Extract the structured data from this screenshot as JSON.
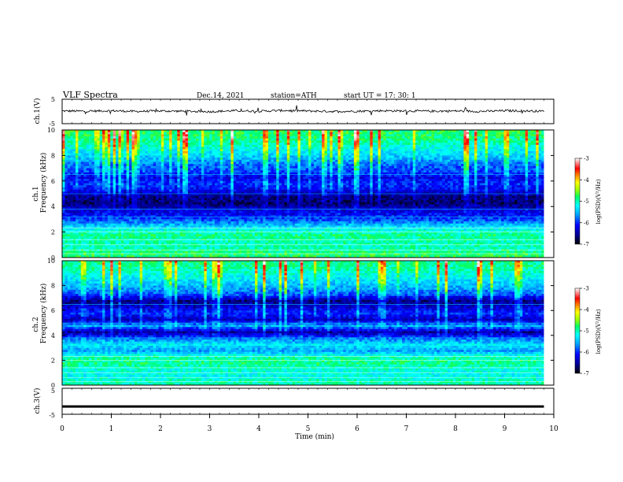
{
  "header": {
    "title": "VLF  Spectra",
    "date": "Dec.14, 2021",
    "station": "station=ATH",
    "start": "start  UT  =    17: 30: 1"
  },
  "chart_data": [
    {
      "type": "line",
      "panel": "ch1-waveform",
      "ylabel": "ch.1(V)",
      "xlim": [
        0,
        10
      ],
      "ylim": [
        -5,
        5
      ],
      "yticks": [
        "5",
        "-5"
      ],
      "series": [
        {
          "x": [
            0,
            0.5,
            1,
            1.5,
            2,
            2.5,
            3,
            3.5,
            4,
            4.5,
            5,
            5.5,
            6,
            6.5,
            7,
            7.5,
            8,
            8.5,
            9,
            9.5,
            9.8
          ],
          "values": [
            0.2,
            0.1,
            0.3,
            0.0,
            0.2,
            0.1,
            -0.1,
            0.3,
            0.1,
            0.4,
            0.2,
            0.0,
            0.1,
            0.3,
            0.2,
            0.1,
            0.2,
            0.0,
            0.3,
            0.2,
            0.1
          ]
        }
      ]
    },
    {
      "type": "heatmap",
      "panel": "ch1-spectrogram",
      "ylabel_top": "ch.1",
      "ylabel": "Frequency  (kHz)",
      "xlim": [
        0,
        10
      ],
      "ylim": [
        0,
        10
      ],
      "yticks": [
        "0",
        "2",
        "4",
        "6",
        "8",
        "10"
      ],
      "colorbar": {
        "label": "log(PSD)(V²/Hz)",
        "ticks": [
          "-3",
          "-4",
          "-5",
          "-6",
          "-7"
        ],
        "range": [
          -7,
          -3
        ]
      },
      "frequency_kHz": [
        0.25,
        0.75,
        1.25,
        1.75,
        2.25,
        2.75,
        3.25,
        3.75,
        4.25,
        4.75,
        5.25,
        5.75,
        6.25,
        6.75,
        7.25,
        7.75,
        8.25,
        8.75,
        9.25,
        9.75
      ],
      "mean_log_psd": [
        -4.8,
        -5.0,
        -5.0,
        -4.9,
        -5.2,
        -5.7,
        -6.1,
        -6.3,
        -6.7,
        -6.6,
        -6.2,
        -6.0,
        -6.2,
        -5.9,
        -5.8,
        -5.5,
        -5.3,
        -5.1,
        -4.9,
        -4.8
      ]
    },
    {
      "type": "heatmap",
      "panel": "ch2-spectrogram",
      "ylabel_top": "ch.2",
      "ylabel": "Frequency  (kHz)",
      "xlim": [
        0,
        10
      ],
      "ylim": [
        0,
        10
      ],
      "yticks": [
        "0",
        "2",
        "4",
        "6",
        "8",
        "10"
      ],
      "colorbar": {
        "label": "log(PSD)(V²/Hz)",
        "ticks": [
          "-3",
          "-4",
          "-5",
          "-6",
          "-7"
        ],
        "range": [
          -7,
          -3
        ]
      },
      "frequency_kHz": [
        0.25,
        0.75,
        1.25,
        1.75,
        2.25,
        2.75,
        3.25,
        3.75,
        4.25,
        4.75,
        5.25,
        5.75,
        6.25,
        6.75,
        7.25,
        7.75,
        8.25,
        8.75,
        9.25,
        9.75
      ],
      "mean_log_psd": [
        -5.0,
        -5.2,
        -5.1,
        -4.9,
        -5.0,
        -5.6,
        -5.3,
        -5.8,
        -6.5,
        -5.6,
        -6.4,
        -6.0,
        -6.3,
        -6.6,
        -5.9,
        -5.6,
        -5.4,
        -5.2,
        -5.0,
        -4.9
      ]
    },
    {
      "type": "line",
      "panel": "ch3-waveform",
      "ylabel": "ch.3(V)",
      "xlim": [
        0,
        10
      ],
      "ylim": [
        -5,
        5
      ],
      "yticks": [
        "5",
        "-5"
      ],
      "xlabel": "Time  (min)",
      "xticks": [
        "0",
        "1",
        "2",
        "3",
        "4",
        "5",
        "6",
        "7",
        "8",
        "9",
        "10"
      ],
      "series": [
        {
          "x": [
            0,
            9.8
          ],
          "values": [
            -2,
            -2
          ]
        }
      ]
    }
  ],
  "colors": {
    "colormap": [
      "#000000",
      "#00008a",
      "#0000ff",
      "#00aaff",
      "#00ffff",
      "#00ff66",
      "#99ff00",
      "#ffff00",
      "#ff8800",
      "#ff0000",
      "#ffffff"
    ],
    "line": "#000000"
  }
}
